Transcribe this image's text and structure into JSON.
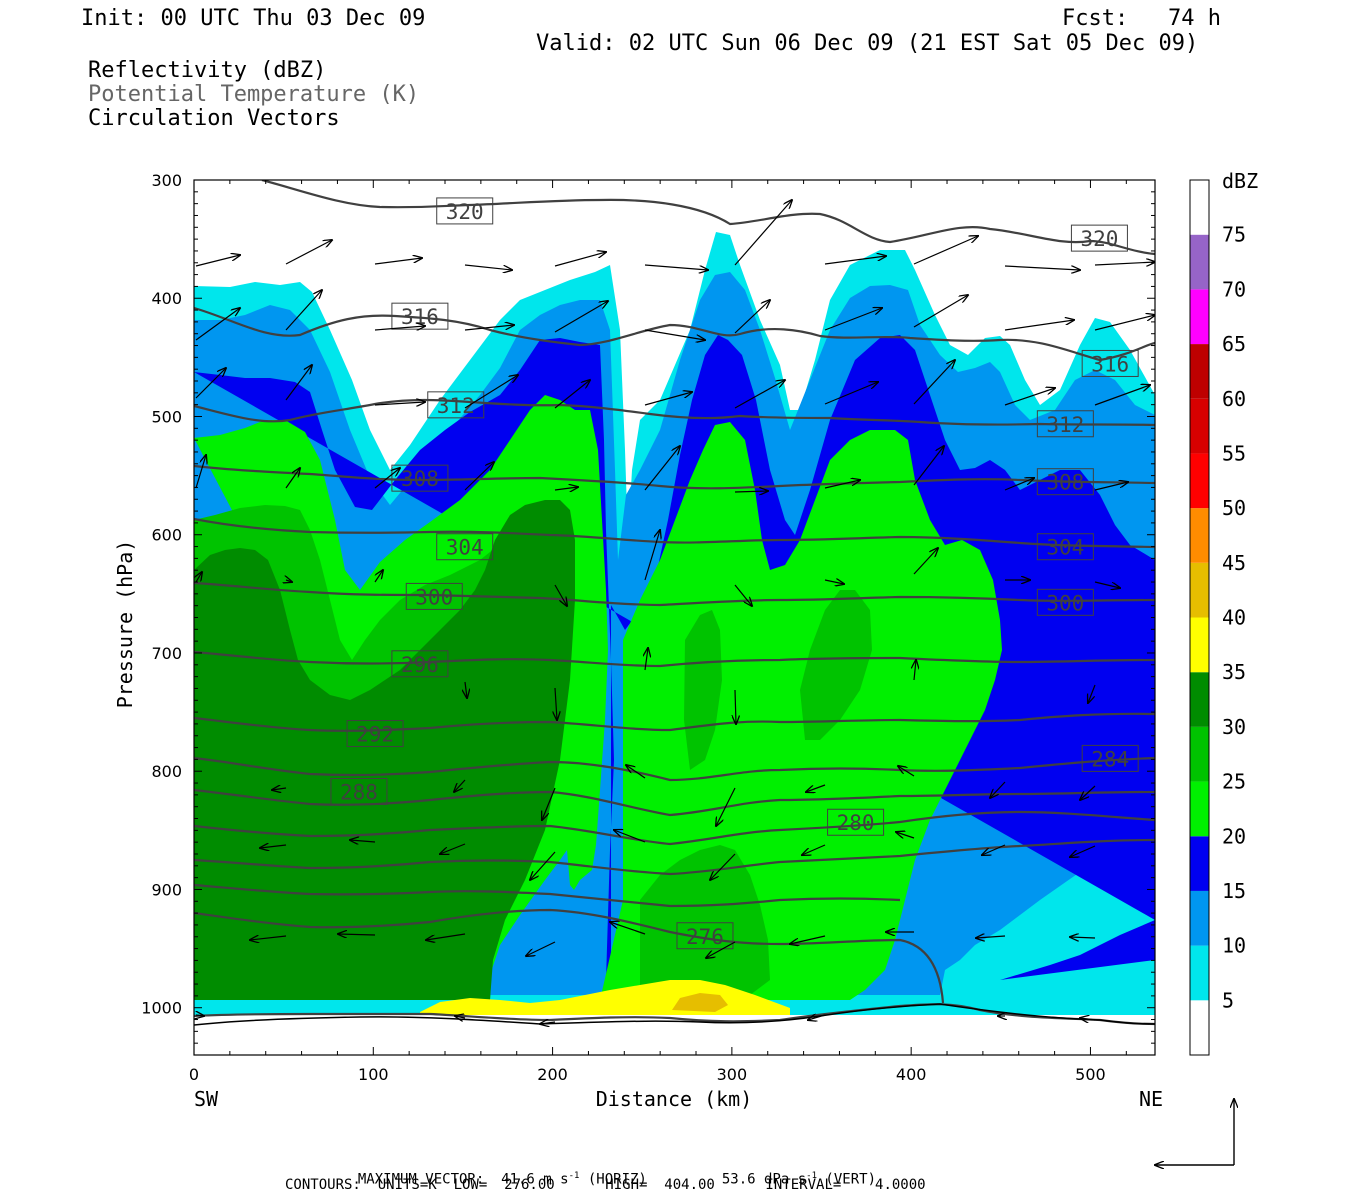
{
  "header": {
    "init": "Init: 00 UTC Thu 03 Dec 09",
    "fcst": "Fcst:   74 h",
    "valid": "Valid: 02 UTC Sun 06 Dec 09 (21 EST Sat 05 Dec 09)"
  },
  "fields": {
    "reflectivity": "Reflectivity (dBZ)",
    "theta": "Potential Temperature (K)",
    "vectors": "Circulation Vectors"
  },
  "footer": {
    "max_vector_a": "MAXIMUM VECTOR:  41.6 m s",
    "sup1": "-1",
    "max_vector_b": " (HORIZ)",
    "max_vector_c": "53.6 dPa s",
    "sup2": "-1",
    "max_vector_d": " (VERT)",
    "contours": "CONTOURS:  UNITS=K  LOW=  276.00      HIGH=  404.00      INTERVAL=    4.0000"
  },
  "colors": {
    "c5": "#00e6ec",
    "c10": "#0096f0",
    "c15": "#0000f0",
    "c20": "#00f000",
    "c25": "#00c300",
    "c30": "#008c00",
    "c35": "#ffff00",
    "c40": "#e6be00",
    "c45": "#ff8c00",
    "c50": "#ff0000",
    "c55": "#d70000",
    "c60": "#be0000",
    "c65": "#ff00ff",
    "c70": "#9664c8",
    "c75": "#ffffff",
    "contour": "#404040"
  },
  "chart_data": {
    "type": "heatmap",
    "xlabel": "Distance (km)",
    "ylabel": "Pressure (hPa)",
    "x_ticks": [
      "0",
      "100",
      "200",
      "300",
      "400",
      "500"
    ],
    "y_ticks": [
      "300",
      "400",
      "500",
      "600",
      "700",
      "800",
      "900",
      "1000"
    ],
    "x_left_label": "SW",
    "x_right_label": "NE",
    "xlim": [
      0,
      536
    ],
    "ylim": [
      1040,
      300
    ],
    "colorbar": {
      "title": "dBZ",
      "levels": [
        "5",
        "10",
        "15",
        "20",
        "25",
        "30",
        "35",
        "40",
        "45",
        "50",
        "55",
        "60",
        "65",
        "70",
        "75"
      ]
    },
    "theta_contour_labels": [
      {
        "value": "320",
        "x": 151,
        "p": 327
      },
      {
        "value": "320",
        "x": 505,
        "p": 350
      },
      {
        "value": "316",
        "x": 126,
        "p": 416
      },
      {
        "value": "316",
        "x": 511,
        "p": 456
      },
      {
        "value": "312",
        "x": 146,
        "p": 491
      },
      {
        "value": "312",
        "x": 486,
        "p": 507
      },
      {
        "value": "308",
        "x": 126,
        "p": 553
      },
      {
        "value": "308",
        "x": 486,
        "p": 556
      },
      {
        "value": "304",
        "x": 151,
        "p": 611
      },
      {
        "value": "304",
        "x": 486,
        "p": 611
      },
      {
        "value": "300",
        "x": 134,
        "p": 653
      },
      {
        "value": "300",
        "x": 486,
        "p": 658
      },
      {
        "value": "296",
        "x": 126,
        "p": 710
      },
      {
        "value": "292",
        "x": 101,
        "p": 769
      },
      {
        "value": "288",
        "x": 92,
        "p": 818
      },
      {
        "value": "284",
        "x": 511,
        "p": 790
      },
      {
        "value": "280",
        "x": 369,
        "p": 844
      },
      {
        "value": "276",
        "x": 285,
        "p": 940
      }
    ]
  }
}
